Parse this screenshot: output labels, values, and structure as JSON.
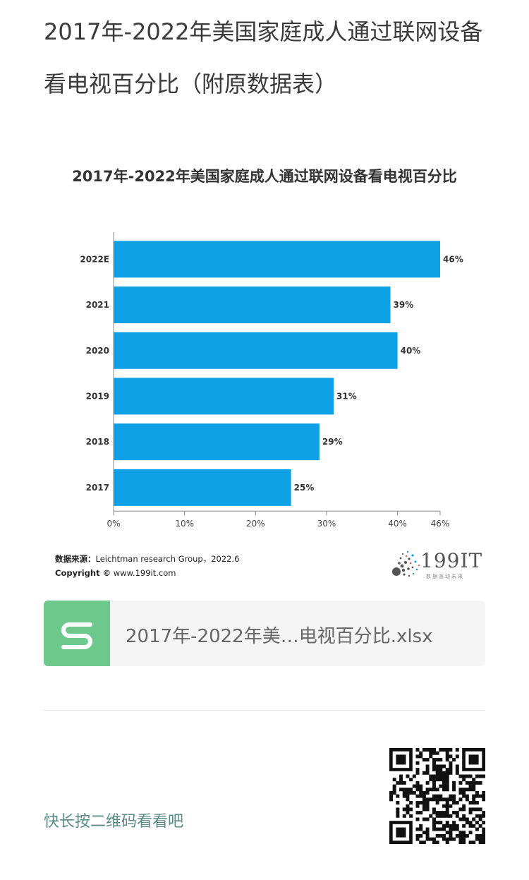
{
  "article": {
    "title": "2017年-2022年美国家庭成人通过联网设备看电视百分比（附原数据表）"
  },
  "chart_data": {
    "type": "bar",
    "orientation": "horizontal",
    "title": "2017年-2022年美国家庭成人通过联网设备看电视百分比",
    "categories": [
      "2022E",
      "2021",
      "2020",
      "2019",
      "2018",
      "2017"
    ],
    "values": [
      46,
      39,
      40,
      31,
      29,
      25
    ],
    "value_labels": [
      "46%",
      "39%",
      "40%",
      "31%",
      "29%",
      "25%"
    ],
    "x_ticks": [
      0,
      10,
      20,
      30,
      40,
      46
    ],
    "x_tick_labels": [
      "0%",
      "10%",
      "20%",
      "30%",
      "40%",
      "46%"
    ],
    "xlim": [
      0,
      46
    ],
    "bar_color": "#0ea1e6",
    "grid": false
  },
  "source": {
    "label": "数据来源：",
    "text": "Leichtman research Group，2022.6",
    "copyright_label": "Copyright ©",
    "copyright_text": "www.199it.com"
  },
  "logo": {
    "text": "199IT",
    "tagline": "数据驱动未来"
  },
  "file": {
    "icon": "spreadsheet-s-icon",
    "name": "2017年-2022年美…电视百分比.xlsx",
    "accent": "#6cc98b"
  },
  "footer": {
    "qr_hint": "快长按二维码看看吧",
    "qr_icon": "qr-code-icon"
  }
}
